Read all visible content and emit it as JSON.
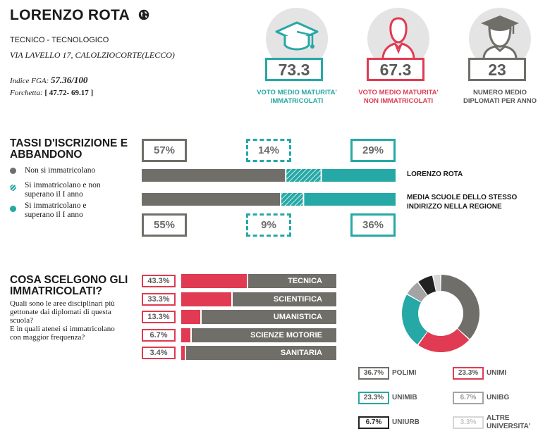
{
  "colors": {
    "grey": "#6f6e68",
    "teal": "#26a8a6",
    "red": "#e03b52",
    "dark": "#222222",
    "lightgrey": "#a4a4a4",
    "faint": "#d6d6d6"
  },
  "header": {
    "title": "LORENZO ROTA",
    "type": "TECNICO - TECNOLOGICO",
    "address": "VIA LAVELLO 17, CALOLZIOCORTE(LECCO)",
    "fga_label": "Indice FGA:",
    "fga_value": "57.36/100",
    "fork_label": "Forchetta:",
    "fork_value": "[ 47.72- 69.17 ]"
  },
  "kpis": [
    {
      "value": "73.3",
      "caption1": "VOTO MEDIO MATURITA'",
      "caption2": "IMMATRICOLATI",
      "icon": "graduation-cap-icon"
    },
    {
      "value": "67.3",
      "caption1": "VOTO MEDIO MATURITA'",
      "caption2": "NON IMMATRICOLATI",
      "icon": "person-icon"
    },
    {
      "value": "23",
      "caption1": "NUMERO MEDIO",
      "caption2": "DIPLOMATI PER ANNO",
      "icon": "graduate-person-icon"
    }
  ],
  "tassi": {
    "title1": "TASSI D'ISCRIZIONE E",
    "title2": "ABBANDONO",
    "legend": [
      {
        "line1": "Non si immatricolano",
        "line2": ""
      },
      {
        "line1": "Si immatricolano e non",
        "line2": "superano il I anno"
      },
      {
        "line1": "Si immatricolano e",
        "line2": "superano il I anno"
      }
    ],
    "top_pct": [
      "57%",
      "14%",
      "29%"
    ],
    "bottom_pct": [
      "55%",
      "9%",
      "36%"
    ],
    "row1_label": "LORENZO ROTA",
    "row2_label1": "MEDIA SCUOLE DELLO STESSO",
    "row2_label2": "INDIRIZZO NELLA REGIONE"
  },
  "scelte": {
    "title1": "COSA SCELGONO GLI",
    "title2": "IMMATRICOLATI?",
    "q1": "Quali sono le aree disciplinari più",
    "q2": "gettonate dai diplomati di questa",
    "q3": "scuola?",
    "q4": "E in quali atenei si immatricolano",
    "q5": "con maggior frequenza?"
  },
  "universities": [
    {
      "pct": "36.7%",
      "name1": "POLIMI",
      "name2": ""
    },
    {
      "pct": "23.3%",
      "name1": "UNIMI",
      "name2": ""
    },
    {
      "pct": "23.3%",
      "name1": "UNIMIB",
      "name2": ""
    },
    {
      "pct": "6.7%",
      "name1": "UNIBG",
      "name2": ""
    },
    {
      "pct": "6.7%",
      "name1": "UNIURB",
      "name2": ""
    },
    {
      "pct": "3.3%",
      "name1": "ALTRE",
      "name2": "UNIVERSITA'"
    }
  ],
  "chart_data": [
    {
      "type": "bar",
      "stacked": true,
      "orientation": "horizontal",
      "categories": [
        "LORENZO ROTA",
        "MEDIA SCUOLE DELLO STESSO INDIRIZZO NELLA REGIONE"
      ],
      "series": [
        {
          "name": "Non si immatricolano",
          "values": [
            57,
            55
          ]
        },
        {
          "name": "Si immatricolano e non superano il I anno",
          "values": [
            14,
            9
          ]
        },
        {
          "name": "Si immatricolano e superano il I anno",
          "values": [
            29,
            36
          ]
        }
      ],
      "ylim": [
        0,
        100
      ]
    },
    {
      "type": "bar",
      "orientation": "horizontal",
      "categories": [
        "TECNICA",
        "SCIENTIFICA",
        "UMANISTICA",
        "SCIENZE MOTORIE",
        "SANITARIA"
      ],
      "values": [
        43.3,
        33.3,
        13.3,
        6.7,
        3.4
      ],
      "ylim": [
        0,
        100
      ]
    },
    {
      "type": "pie",
      "donut": true,
      "categories": [
        "POLIMI",
        "UNIMI",
        "UNIMIB",
        "UNIBG",
        "UNIURB",
        "ALTRE UNIVERSITA'"
      ],
      "values": [
        36.7,
        23.3,
        23.3,
        6.7,
        6.7,
        3.3
      ],
      "colors": [
        "#6f6e68",
        "#e03b52",
        "#26a8a6",
        "#a4a4a4",
        "#222222",
        "#d6d6d6"
      ]
    }
  ]
}
